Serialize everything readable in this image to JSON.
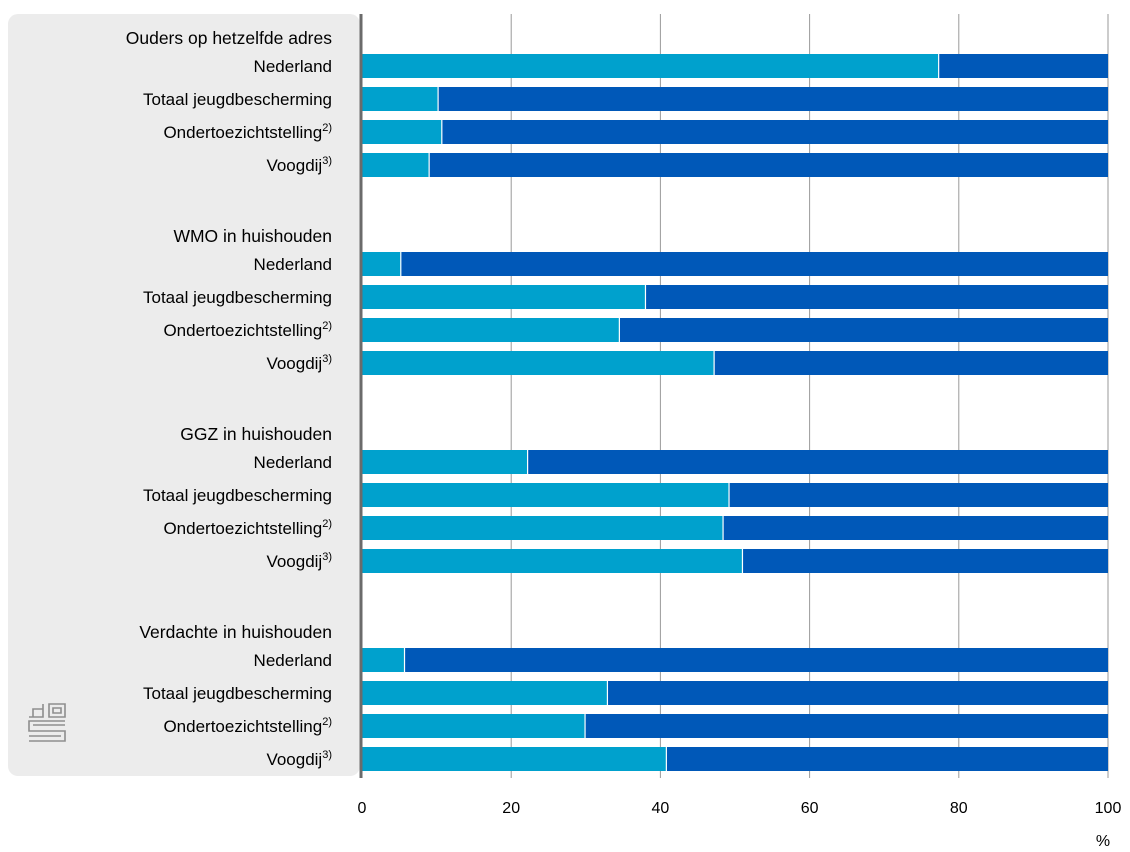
{
  "colors": {
    "yes": "#00a1cd",
    "no": "#0058b8",
    "panel": "#ececec",
    "grid": "#9a9a9a",
    "axis": "#6b6b6b",
    "logo": "#8e8e8e"
  },
  "logo_icon": "cbs-logo-icon",
  "chart_data": {
    "type": "bar",
    "orientation": "horizontal",
    "stacked": true,
    "normalized_100": true,
    "xlabel": "",
    "unit": "%",
    "xlim": [
      0,
      100
    ],
    "xticks": [
      0,
      20,
      40,
      60,
      80,
      100
    ],
    "grid": true,
    "legend": "none",
    "groups": [
      {
        "name": "Ouders op hetzelfde adres",
        "categories": [
          {
            "label": "Nederland",
            "note": ""
          },
          {
            "label": "Totaal jeugdbescherming",
            "note": ""
          },
          {
            "label": "Ondertoezichtstelling",
            "note": "2)"
          },
          {
            "label": "Voogdij",
            "note": "3)"
          }
        ],
        "values": [
          77.3,
          10.2,
          10.7,
          9.0
        ]
      },
      {
        "name": "WMO in huishouden",
        "categories": [
          {
            "label": "Nederland",
            "note": ""
          },
          {
            "label": "Totaal jeugdbescherming",
            "note": ""
          },
          {
            "label": "Ondertoezichtstelling",
            "note": "2)"
          },
          {
            "label": "Voogdij",
            "note": "3)"
          }
        ],
        "values": [
          5.2,
          38.0,
          34.5,
          47.2
        ]
      },
      {
        "name": "GGZ in huishouden",
        "categories": [
          {
            "label": "Nederland",
            "note": ""
          },
          {
            "label": "Totaal jeugdbescherming",
            "note": ""
          },
          {
            "label": "Ondertoezichtstelling",
            "note": "2)"
          },
          {
            "label": "Voogdij",
            "note": "3)"
          }
        ],
        "values": [
          22.2,
          49.2,
          48.4,
          51.0
        ]
      },
      {
        "name": "Verdachte in huishouden",
        "categories": [
          {
            "label": "Nederland",
            "note": ""
          },
          {
            "label": "Totaal jeugdbescherming",
            "note": ""
          },
          {
            "label": "Ondertoezichtstelling",
            "note": "2)"
          },
          {
            "label": "Voogdij",
            "note": "3)"
          }
        ],
        "values": [
          5.7,
          32.9,
          29.9,
          40.8
        ]
      }
    ]
  }
}
